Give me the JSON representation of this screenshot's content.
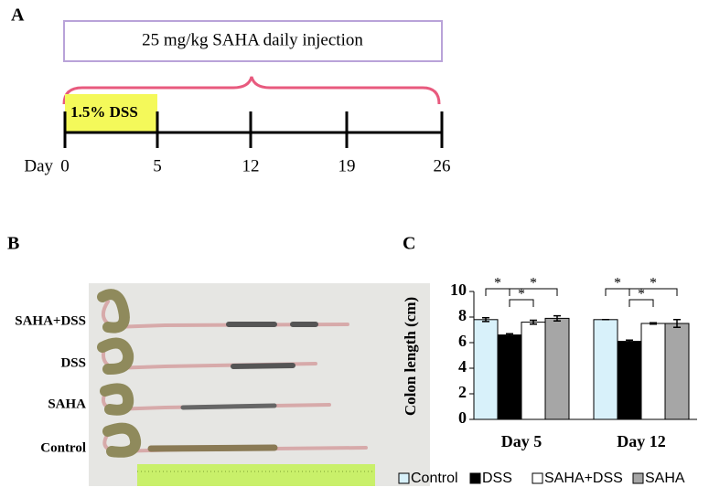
{
  "panel_a": {
    "label": "A",
    "injection": "25 mg/kg SAHA daily injection",
    "dss": "1.5% DSS",
    "day_word": "Day",
    "days": [
      "0",
      "5",
      "12",
      "19",
      "26"
    ]
  },
  "panel_b": {
    "label": "B",
    "groups": [
      "SAHA+DSS",
      "DSS",
      "SAHA",
      "Control"
    ]
  },
  "panel_c": {
    "label": "C"
  },
  "chart_data": {
    "type": "bar",
    "ylabel": "Colon length (cm)",
    "categories": [
      "Day 5",
      "Day 12"
    ],
    "series": [
      {
        "name": "Control",
        "color": "#d8f1fa",
        "values": [
          7.8,
          7.8
        ],
        "errors": [
          0.15,
          0
        ]
      },
      {
        "name": "DSS",
        "color": "#000000",
        "values": [
          6.6,
          6.1
        ],
        "errors": [
          0.1,
          0.1
        ]
      },
      {
        "name": "SAHA+DSS",
        "color": "#ffffff",
        "values": [
          7.6,
          7.5
        ],
        "errors": [
          0.15,
          0.05
        ]
      },
      {
        "name": "SAHA",
        "color": "#a6a6a6",
        "values": [
          7.9,
          7.5
        ],
        "errors": [
          0.2,
          0.3
        ]
      }
    ],
    "annotations": [
      "*",
      "*",
      "*",
      "*",
      "*",
      "*"
    ],
    "ylim": [
      0,
      10
    ],
    "yticks": [
      0,
      2,
      4,
      6,
      8,
      10
    ]
  }
}
